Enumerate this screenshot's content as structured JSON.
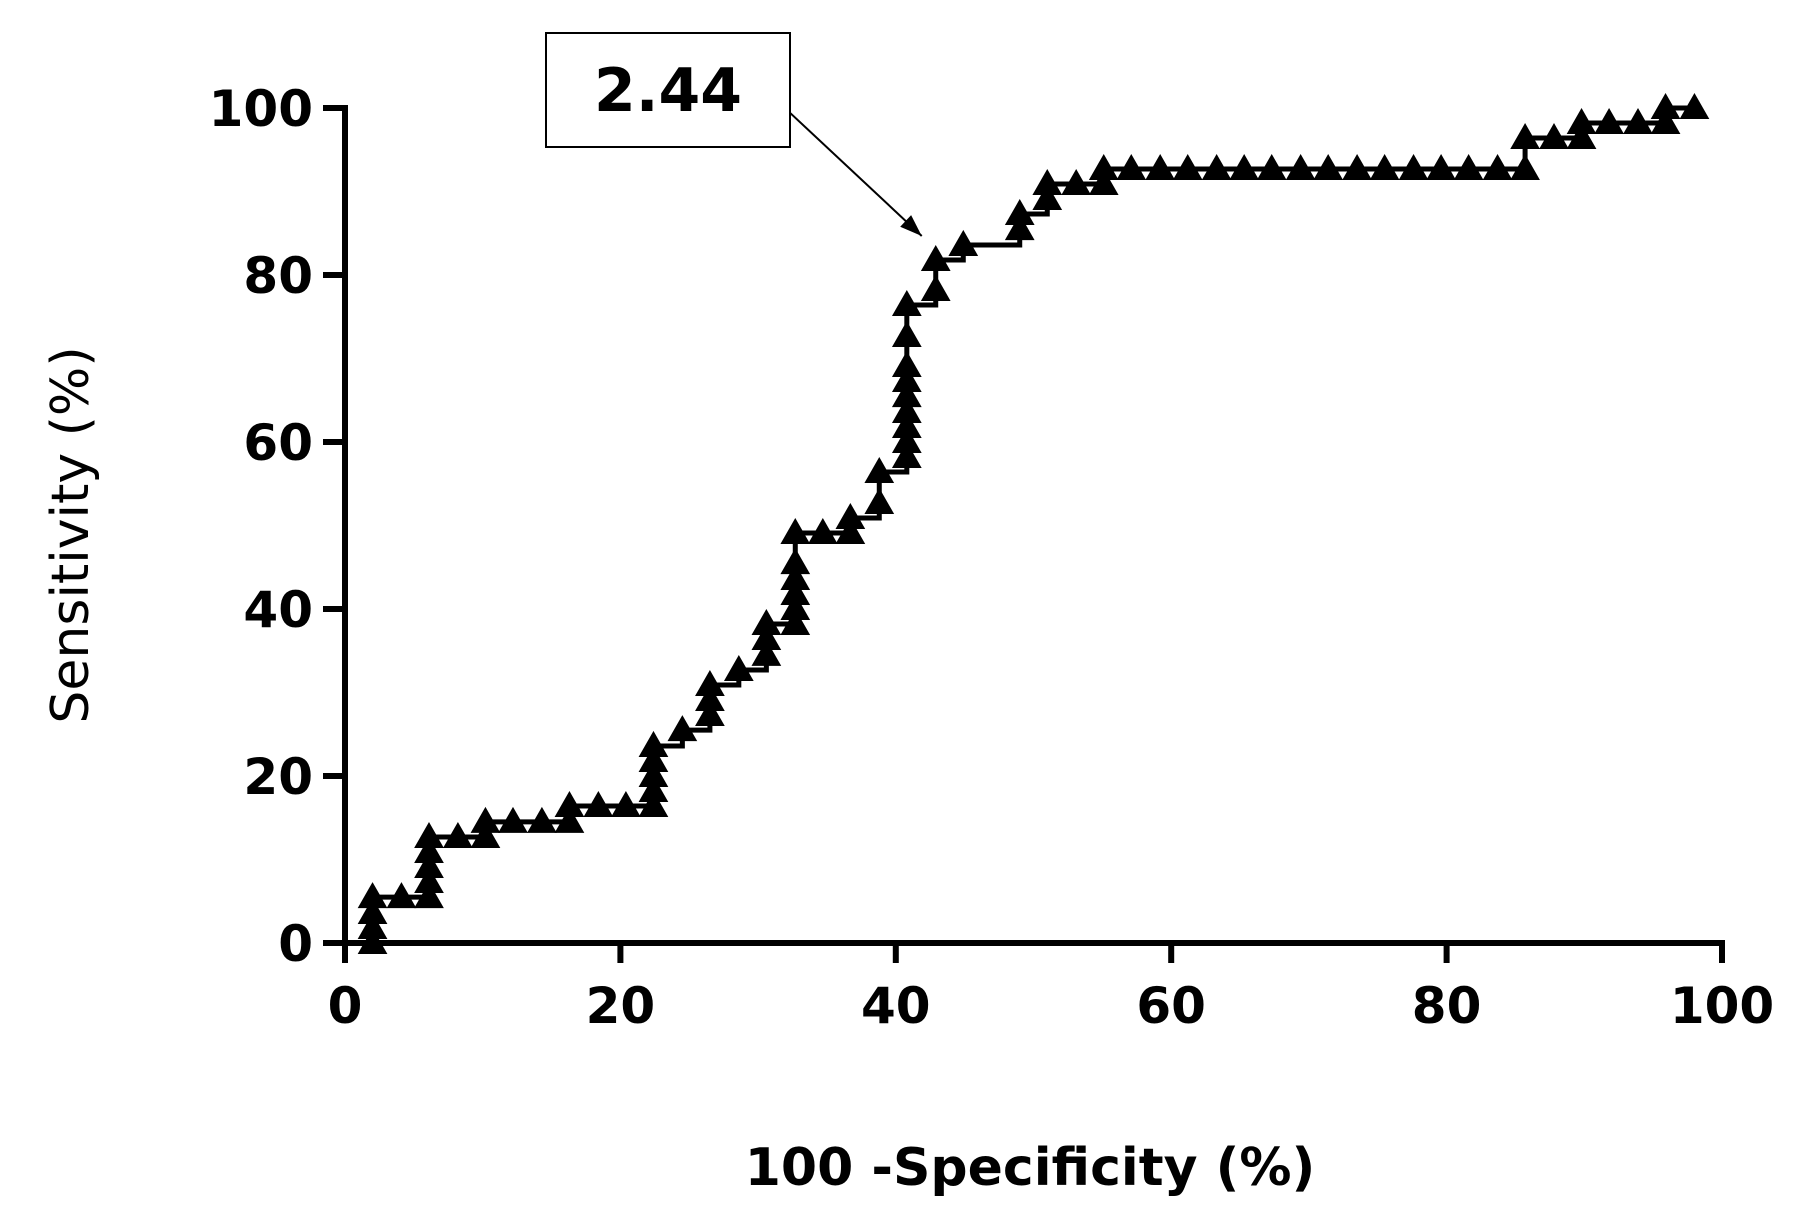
{
  "chart_data": {
    "type": "line",
    "xlabel": "100 -Specificity (%)",
    "ylabel": "Sensitivity (%)",
    "xlim": [
      0,
      100
    ],
    "ylim": [
      0,
      100
    ],
    "xticks": [
      "0",
      "20",
      "40",
      "60",
      "80",
      "100"
    ],
    "yticks": [
      "0",
      "20",
      "40",
      "60",
      "80",
      "100"
    ],
    "grid": false,
    "marker": "filled-triangle",
    "series": [
      {
        "x": [
          2.0,
          2.0,
          2.0,
          2.0,
          4.1,
          6.1,
          6.1,
          6.1,
          6.1,
          6.1,
          8.2,
          10.2,
          10.2,
          12.2,
          14.3,
          16.3,
          16.3,
          18.4,
          20.4,
          22.4,
          22.4,
          22.4,
          22.4,
          22.4,
          24.5,
          26.5,
          26.5,
          26.5,
          28.6,
          30.6,
          30.6,
          30.6,
          32.7,
          32.7,
          32.7,
          32.7,
          32.7,
          32.7,
          34.7,
          36.7,
          36.7,
          38.8,
          38.8,
          40.8,
          40.8,
          40.8,
          40.8,
          40.8,
          40.8,
          40.8,
          40.8,
          40.8,
          42.9,
          42.9,
          44.9,
          49.0,
          49.0,
          51.0,
          51.0,
          53.1,
          55.1,
          55.1,
          57.1,
          59.2,
          61.2,
          63.3,
          65.3,
          67.3,
          69.4,
          71.4,
          73.5,
          75.5,
          77.6,
          79.6,
          81.6,
          83.7,
          85.7,
          85.7,
          87.8,
          89.8,
          89.8,
          91.8,
          93.9,
          95.9,
          95.9,
          98.0
        ],
        "y": [
          0,
          1.8,
          3.6,
          5.5,
          5.5,
          5.5,
          7.3,
          9.1,
          10.9,
          12.7,
          12.7,
          12.7,
          14.5,
          14.5,
          14.5,
          14.5,
          16.4,
          16.4,
          16.4,
          16.4,
          18.2,
          20.0,
          21.8,
          23.6,
          25.5,
          27.3,
          29.1,
          30.9,
          32.7,
          34.5,
          36.4,
          38.2,
          38.2,
          40.0,
          41.8,
          43.6,
          45.5,
          49.1,
          49.1,
          49.1,
          50.9,
          52.7,
          56.4,
          58.2,
          60.0,
          61.8,
          63.6,
          65.5,
          67.3,
          69.1,
          72.7,
          76.4,
          78.2,
          81.8,
          83.6,
          85.5,
          87.3,
          89.1,
          90.9,
          90.9,
          90.9,
          92.7,
          92.7,
          92.7,
          92.7,
          92.7,
          92.7,
          92.7,
          92.7,
          92.7,
          92.7,
          92.7,
          92.7,
          92.7,
          92.7,
          92.7,
          92.7,
          96.4,
          96.4,
          96.4,
          98.2,
          98.2,
          98.2,
          98.2,
          100,
          100
        ]
      }
    ],
    "annotations": [
      {
        "text": "2.44",
        "x": 42.9,
        "y": 81.8
      }
    ]
  }
}
